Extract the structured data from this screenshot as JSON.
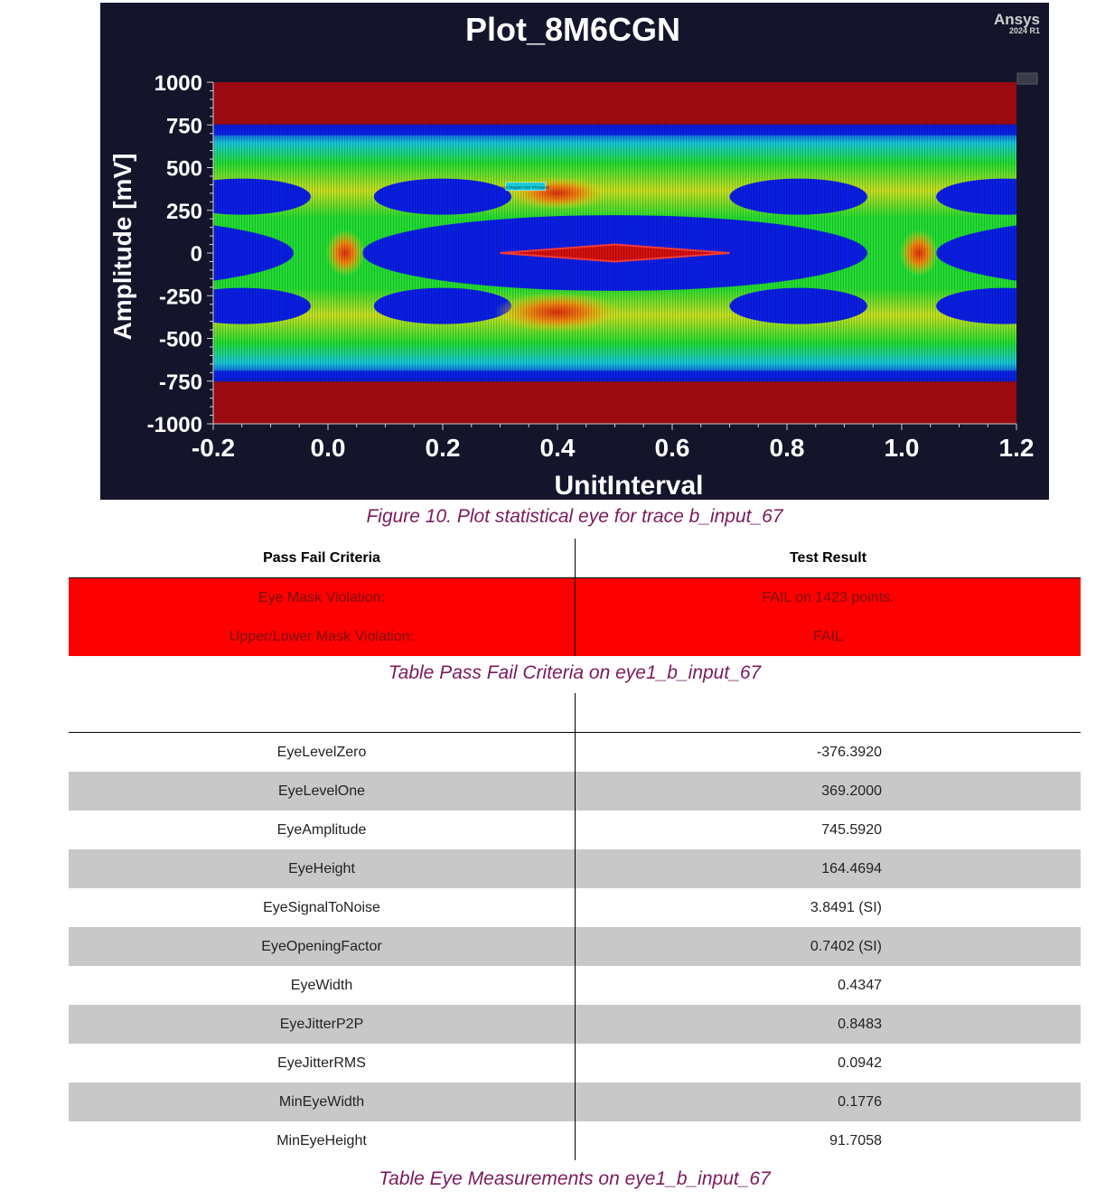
{
  "plot": {
    "title": "Plot_8M6CGN",
    "brand": "Ansys",
    "brand_version": "2024 R1",
    "legend_note": "Eye Diagram Test Trio Eyeabl",
    "colors": {
      "background": "#14152b",
      "mask_bands": "#9b0a10",
      "center_mask": "#d41010",
      "eye_blue": "#0a1ee6",
      "density_green": "#22dd33",
      "density_yellow": "#e8e020",
      "density_orange": "#f07a10",
      "density_cyan": "#18c8d8"
    }
  },
  "chart_data": {
    "type": "heatmap",
    "title": "Plot_8M6CGN",
    "xlabel": "UnitInterval",
    "ylabel": "Amplitude [mV]",
    "xlim": [
      -0.2,
      1.2
    ],
    "ylim": [
      -1000,
      1000
    ],
    "x_ticks": [
      -0.2,
      0.0,
      0.2,
      0.4,
      0.6,
      0.8,
      1.0,
      1.2
    ],
    "x_tick_labels": [
      "-0.2",
      "0.0",
      "0.2",
      "0.4",
      "0.6",
      "0.8",
      "1.0",
      "1.2"
    ],
    "y_ticks": [
      1000,
      750,
      500,
      250,
      0,
      -250,
      -500,
      -750,
      -1000
    ],
    "y_tick_labels": [
      "1000",
      "750",
      "500",
      "250",
      "0",
      "-250",
      "-500",
      "-750",
      "-1000"
    ],
    "upper_mask_mv": [
      750,
      1000
    ],
    "lower_mask_mv": [
      -1000,
      -750
    ],
    "eye_mask": {
      "ui_left": 0.3,
      "ui_right": 0.7,
      "ui_peak": 0.5,
      "mv_half_height": 50
    },
    "eye_center_ui": 0.5,
    "crossings_ui": [
      0.03,
      1.03
    ],
    "levels_mv": [
      -376.392,
      369.2
    ],
    "outer_levels_mv": [
      -700,
      700
    ],
    "grid": false,
    "legend": "none"
  },
  "captions": {
    "figure": "Figure 10. Plot statistical eye for trace b_input_67",
    "pass_fail": "Table Pass Fail Criteria on eye1_b_input_67",
    "measurements": "Table Eye Measurements on eye1_b_input_67"
  },
  "pass_fail": {
    "headers": [
      "Pass Fail Criteria",
      "Test Result"
    ],
    "rows": [
      {
        "criteria": "Eye Mask Violation:",
        "result": "FAIL on 1423 points."
      },
      {
        "criteria": "Upper/Lower Mask Violation:",
        "result": "FAIL"
      }
    ]
  },
  "measurements": {
    "rows": [
      {
        "name": "EyeLevelZero",
        "value": "-376.3920"
      },
      {
        "name": "EyeLevelOne",
        "value": "369.2000"
      },
      {
        "name": "EyeAmplitude",
        "value": "745.5920"
      },
      {
        "name": "EyeHeight",
        "value": "164.4694"
      },
      {
        "name": "EyeSignalToNoise",
        "value": "3.8491 (SI)"
      },
      {
        "name": "EyeOpeningFactor",
        "value": "0.7402 (SI)"
      },
      {
        "name": "EyeWidth",
        "value": "0.4347"
      },
      {
        "name": "EyeJitterP2P",
        "value": "0.8483"
      },
      {
        "name": "EyeJitterRMS",
        "value": "0.0942"
      },
      {
        "name": "MinEyeWidth",
        "value": "0.1776"
      },
      {
        "name": "MinEyeHeight",
        "value": "91.7058"
      }
    ]
  }
}
